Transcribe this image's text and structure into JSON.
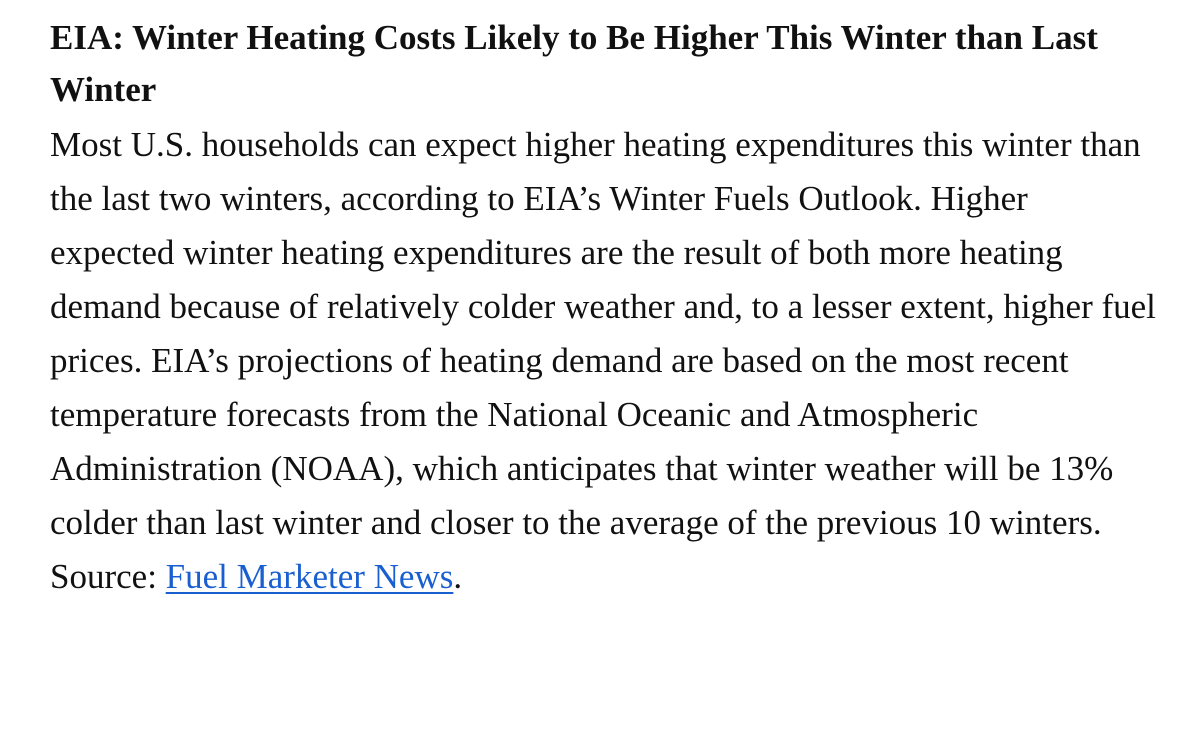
{
  "article": {
    "headline": "EIA: Winter Heating Costs Likely to Be Higher This Winter than Last Winter",
    "body_text": "Most U.S. households can expect higher heating expenditures this winter than the last two winters, according to EIA’s Winter Fuels Outlook. Higher expected winter heating expenditures are the result of both more heating demand because of relatively colder weather and, to a lesser extent, higher fuel prices. EIA’s projections of heating demand are based on the most recent temperature forecasts from the National Oceanic and Atmospheric Administration (NOAA), which anticipates that winter weather will be 13% colder than last winter and closer to the average of the previous 10 winters.",
    "source_label": "Source:",
    "source_link_text": "Fuel Marketer News",
    "trailing_punctuation": "."
  },
  "colors": {
    "text": "#111111",
    "link": "#1a5fd0",
    "background": "#ffffff"
  }
}
